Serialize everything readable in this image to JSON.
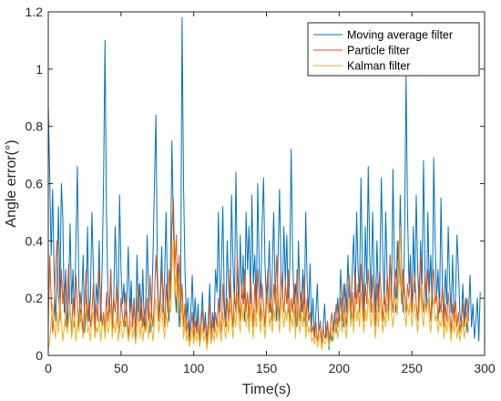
{
  "chart_data": {
    "type": "line",
    "title": "",
    "xlabel": "Time(s)",
    "ylabel": "Angle error(°)",
    "xlim": [
      0,
      300
    ],
    "ylim": [
      0,
      1.2
    ],
    "x_ticks": [
      "0",
      "50",
      "100",
      "150",
      "200",
      "250",
      "300"
    ],
    "y_ticks": [
      "0",
      "0.2",
      "0.4",
      "0.6",
      "0.8",
      "1",
      "1.2"
    ],
    "grid": false,
    "legend_position": "top-right",
    "x_step": 1,
    "series": [
      {
        "name": "Moving average filter",
        "color": "#0072BD",
        "values": [
          0.88,
          0.62,
          0.35,
          0.58,
          0.3,
          0.12,
          0.24,
          0.52,
          0.2,
          0.6,
          0.48,
          0.15,
          0.3,
          0.08,
          0.22,
          0.46,
          0.18,
          0.3,
          0.1,
          0.4,
          0.66,
          0.25,
          0.12,
          0.2,
          0.35,
          0.08,
          0.15,
          0.45,
          0.12,
          0.2,
          0.5,
          0.3,
          0.1,
          0.25,
          0.18,
          0.4,
          0.12,
          0.3,
          0.6,
          1.1,
          0.5,
          0.22,
          0.15,
          0.3,
          0.08,
          0.2,
          0.45,
          0.28,
          0.12,
          0.56,
          0.3,
          0.18,
          0.25,
          0.1,
          0.2,
          0.38,
          0.15,
          0.26,
          0.1,
          0.2,
          0.06,
          0.35,
          0.15,
          0.25,
          0.12,
          0.3,
          0.1,
          0.18,
          0.42,
          0.2,
          0.08,
          0.15,
          0.35,
          0.6,
          0.84,
          0.3,
          0.12,
          0.22,
          0.38,
          0.15,
          0.28,
          0.5,
          0.2,
          0.12,
          0.3,
          0.75,
          0.45,
          0.25,
          0.15,
          0.32,
          0.1,
          0.22,
          1.18,
          0.6,
          0.3,
          0.12,
          0.2,
          0.06,
          0.15,
          0.28,
          0.1,
          0.2,
          0.08,
          0.18,
          0.05,
          0.12,
          0.22,
          0.08,
          0.15,
          0.05,
          0.12,
          0.25,
          0.06,
          0.15,
          0.1,
          0.3,
          0.22,
          0.5,
          0.15,
          0.3,
          0.52,
          0.2,
          0.1,
          0.4,
          0.25,
          0.15,
          0.56,
          0.32,
          0.18,
          0.64,
          0.3,
          0.15,
          0.42,
          0.2,
          0.35,
          0.12,
          0.5,
          0.3,
          0.45,
          0.18,
          0.56,
          0.25,
          0.35,
          0.15,
          0.6,
          0.3,
          0.2,
          0.45,
          0.62,
          0.32,
          0.18,
          0.25,
          0.4,
          0.15,
          0.3,
          0.5,
          0.22,
          0.12,
          0.35,
          0.58,
          0.3,
          0.2,
          0.45,
          0.25,
          0.42,
          0.15,
          0.3,
          0.72,
          0.35,
          0.18,
          0.25,
          0.1,
          0.4,
          0.22,
          0.15,
          0.3,
          0.12,
          0.5,
          0.25,
          0.15,
          0.32,
          0.1,
          0.2,
          0.06,
          0.15,
          0.25,
          0.08,
          0.12,
          0.05,
          0.1,
          0.18,
          0.06,
          0.12,
          0.02,
          0.08,
          0.05,
          0.1,
          0.15,
          0.08,
          0.2,
          0.12,
          0.3,
          0.18,
          0.1,
          0.25,
          0.15,
          0.35,
          0.2,
          0.12,
          0.3,
          0.42,
          0.18,
          0.5,
          0.3,
          0.22,
          0.62,
          0.3,
          0.15,
          0.45,
          0.25,
          0.66,
          0.35,
          0.2,
          0.5,
          0.28,
          0.15,
          0.4,
          0.2,
          0.3,
          0.62,
          0.35,
          0.18,
          0.5,
          0.28,
          0.15,
          0.35,
          0.2,
          0.65,
          0.3,
          0.15,
          0.4,
          0.25,
          0.56,
          0.3,
          0.15,
          0.42,
          0.98,
          0.5,
          0.25,
          0.35,
          0.15,
          0.45,
          0.22,
          0.56,
          0.3,
          0.15,
          0.4,
          0.25,
          0.68,
          0.3,
          0.15,
          0.5,
          0.22,
          0.35,
          0.15,
          0.69,
          0.4,
          0.2,
          0.3,
          0.15,
          0.55,
          0.25,
          0.12,
          0.3,
          0.18,
          0.45,
          0.25,
          0.15,
          0.35,
          0.12,
          0.2,
          0.42,
          0.3,
          0.15,
          0.1,
          0.25,
          0.12,
          0.2,
          0.08,
          0.15,
          0.28,
          0.1,
          0.18,
          0.06,
          0.12,
          0.2,
          0.05,
          0.22
        ]
      },
      {
        "name": "Particle filter",
        "color": "#D95319",
        "values": [
          0.1,
          0.35,
          0.2,
          0.08,
          0.15,
          0.3,
          0.4,
          0.22,
          0.12,
          0.3,
          0.18,
          0.25,
          0.1,
          0.2,
          0.32,
          0.15,
          0.08,
          0.2,
          0.12,
          0.28,
          0.18,
          0.1,
          0.22,
          0.14,
          0.08,
          0.18,
          0.3,
          0.12,
          0.2,
          0.1,
          0.15,
          0.25,
          0.08,
          0.18,
          0.12,
          0.3,
          0.2,
          0.1,
          0.15,
          0.08,
          0.22,
          0.12,
          0.18,
          0.3,
          0.1,
          0.2,
          0.15,
          0.25,
          0.12,
          0.08,
          0.2,
          0.14,
          0.1,
          0.22,
          0.15,
          0.06,
          0.12,
          0.2,
          0.1,
          0.18,
          0.08,
          0.15,
          0.25,
          0.12,
          0.2,
          0.1,
          0.16,
          0.08,
          0.2,
          0.12,
          0.28,
          0.15,
          0.1,
          0.2,
          0.35,
          0.25,
          0.12,
          0.18,
          0.3,
          0.2,
          0.1,
          0.25,
          0.15,
          0.3,
          0.2,
          0.45,
          0.55,
          0.3,
          0.42,
          0.2,
          0.35,
          0.15,
          0.25,
          0.1,
          0.18,
          0.08,
          0.12,
          0.05,
          0.1,
          0.15,
          0.06,
          0.12,
          0.08,
          0.14,
          0.05,
          0.1,
          0.16,
          0.08,
          0.12,
          0.04,
          0.1,
          0.18,
          0.06,
          0.12,
          0.08,
          0.15,
          0.1,
          0.2,
          0.12,
          0.08,
          0.25,
          0.15,
          0.1,
          0.2,
          0.12,
          0.3,
          0.18,
          0.1,
          0.22,
          0.15,
          0.35,
          0.2,
          0.12,
          0.25,
          0.18,
          0.3,
          0.15,
          0.22,
          0.12,
          0.28,
          0.18,
          0.1,
          0.25,
          0.15,
          0.3,
          0.2,
          0.12,
          0.25,
          0.18,
          0.1,
          0.22,
          0.3,
          0.15,
          0.2,
          0.12,
          0.25,
          0.18,
          0.35,
          0.2,
          0.12,
          0.3,
          0.22,
          0.15,
          0.25,
          0.18,
          0.3,
          0.12,
          0.2,
          0.15,
          0.25,
          0.1,
          0.3,
          0.18,
          0.12,
          0.22,
          0.15,
          0.28,
          0.1,
          0.2,
          0.12,
          0.15,
          0.08,
          0.1,
          0.06,
          0.12,
          0.05,
          0.08,
          0.12,
          0.04,
          0.1,
          0.06,
          0.08,
          0.12,
          0.05,
          0.1,
          0.15,
          0.08,
          0.12,
          0.18,
          0.1,
          0.15,
          0.2,
          0.12,
          0.25,
          0.15,
          0.1,
          0.2,
          0.28,
          0.15,
          0.22,
          0.12,
          0.3,
          0.18,
          0.25,
          0.15,
          0.32,
          0.2,
          0.12,
          0.25,
          0.18,
          0.3,
          0.22,
          0.15,
          0.28,
          0.18,
          0.1,
          0.25,
          0.15,
          0.3,
          0.2,
          0.12,
          0.22,
          0.15,
          0.28,
          0.18,
          0.35,
          0.2,
          0.15,
          0.25,
          0.3,
          0.2,
          0.4,
          0.28,
          0.18,
          0.3,
          0.22,
          0.15,
          0.25,
          0.2,
          0.3,
          0.15,
          0.22,
          0.28,
          0.18,
          0.12,
          0.25,
          0.35,
          0.2,
          0.15,
          0.28,
          0.22,
          0.3,
          0.18,
          0.12,
          0.25,
          0.3,
          0.18,
          0.22,
          0.12,
          0.2,
          0.15,
          0.25,
          0.1,
          0.18,
          0.12,
          0.22,
          0.15,
          0.08,
          0.18,
          0.12,
          0.2,
          0.1,
          0.15,
          0.08,
          0.12,
          0.18,
          0.1,
          0.15,
          0.2,
          0.12
        ]
      },
      {
        "name": "Kalman filter",
        "color": "#EDB120",
        "values": [
          0.02,
          0.05,
          0.12,
          0.18,
          0.1,
          0.06,
          0.15,
          0.08,
          0.2,
          0.12,
          0.05,
          0.1,
          0.15,
          0.08,
          0.12,
          0.18,
          0.06,
          0.1,
          0.14,
          0.05,
          0.12,
          0.08,
          0.15,
          0.1,
          0.06,
          0.12,
          0.18,
          0.08,
          0.1,
          0.05,
          0.12,
          0.15,
          0.06,
          0.1,
          0.08,
          0.14,
          0.05,
          0.1,
          0.12,
          0.06,
          0.15,
          0.08,
          0.1,
          0.18,
          0.06,
          0.12,
          0.08,
          0.15,
          0.05,
          0.1,
          0.12,
          0.06,
          0.08,
          0.14,
          0.1,
          0.05,
          0.08,
          0.12,
          0.06,
          0.1,
          0.04,
          0.08,
          0.15,
          0.06,
          0.12,
          0.05,
          0.1,
          0.08,
          0.12,
          0.06,
          0.15,
          0.1,
          0.05,
          0.12,
          0.2,
          0.15,
          0.08,
          0.12,
          0.18,
          0.1,
          0.06,
          0.15,
          0.1,
          0.2,
          0.15,
          0.3,
          0.4,
          0.2,
          0.3,
          0.15,
          0.25,
          0.1,
          0.18,
          0.06,
          0.12,
          0.05,
          0.08,
          0.03,
          0.06,
          0.1,
          0.04,
          0.08,
          0.05,
          0.1,
          0.03,
          0.06,
          0.1,
          0.05,
          0.08,
          0.02,
          0.06,
          0.12,
          0.04,
          0.08,
          0.05,
          0.1,
          0.06,
          0.12,
          0.08,
          0.05,
          0.15,
          0.1,
          0.06,
          0.12,
          0.08,
          0.2,
          0.12,
          0.06,
          0.15,
          0.1,
          0.22,
          0.12,
          0.08,
          0.18,
          0.12,
          0.2,
          0.1,
          0.15,
          0.08,
          0.18,
          0.12,
          0.06,
          0.16,
          0.1,
          0.2,
          0.14,
          0.08,
          0.16,
          0.12,
          0.06,
          0.15,
          0.2,
          0.1,
          0.14,
          0.08,
          0.16,
          0.12,
          0.24,
          0.14,
          0.08,
          0.2,
          0.15,
          0.1,
          0.16,
          0.12,
          0.2,
          0.08,
          0.14,
          0.1,
          0.16,
          0.06,
          0.2,
          0.12,
          0.08,
          0.15,
          0.1,
          0.18,
          0.06,
          0.12,
          0.08,
          0.1,
          0.05,
          0.06,
          0.04,
          0.08,
          0.03,
          0.05,
          0.08,
          0.02,
          0.06,
          0.04,
          0.05,
          0.08,
          0.03,
          0.06,
          0.1,
          0.05,
          0.08,
          0.12,
          0.06,
          0.1,
          0.14,
          0.08,
          0.16,
          0.1,
          0.06,
          0.14,
          0.2,
          0.1,
          0.15,
          0.08,
          0.2,
          0.12,
          0.16,
          0.1,
          0.22,
          0.14,
          0.08,
          0.16,
          0.12,
          0.2,
          0.15,
          0.1,
          0.18,
          0.12,
          0.06,
          0.16,
          0.1,
          0.2,
          0.14,
          0.08,
          0.15,
          0.1,
          0.18,
          0.12,
          0.24,
          0.14,
          0.1,
          0.16,
          0.2,
          0.14,
          0.3,
          0.45,
          0.25,
          0.2,
          0.15,
          0.1,
          0.18,
          0.14,
          0.2,
          0.1,
          0.15,
          0.18,
          0.12,
          0.08,
          0.16,
          0.24,
          0.14,
          0.1,
          0.18,
          0.15,
          0.2,
          0.12,
          0.08,
          0.16,
          0.2,
          0.12,
          0.14,
          0.08,
          0.12,
          0.1,
          0.16,
          0.06,
          0.12,
          0.08,
          0.14,
          0.1,
          0.05,
          0.12,
          0.08,
          0.14,
          0.06,
          0.1,
          0.05,
          0.08,
          0.12,
          0.06,
          0.1,
          0.14,
          0.08
        ]
      }
    ]
  }
}
